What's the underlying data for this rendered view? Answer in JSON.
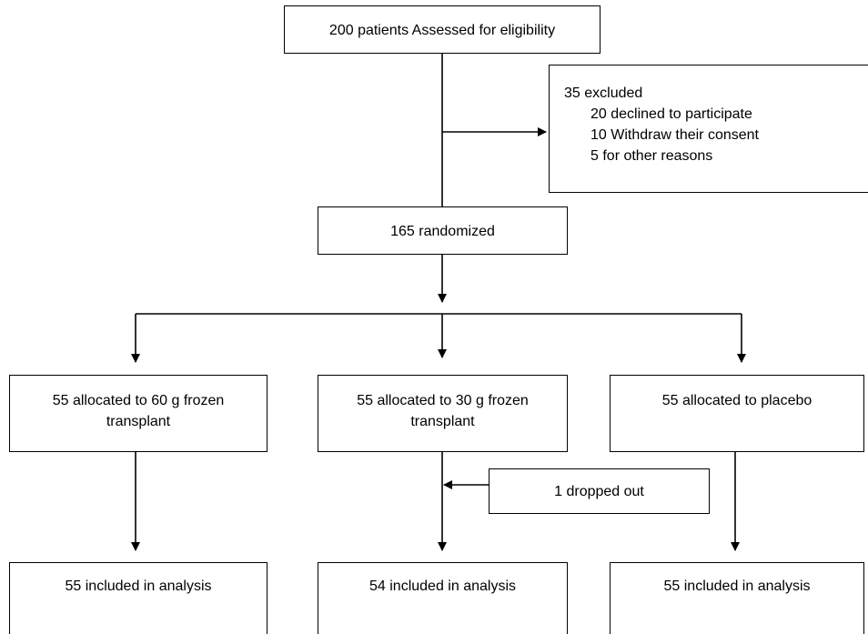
{
  "colors": {
    "line": "#000000",
    "box_border": "#000000",
    "background": "#ffffff"
  },
  "assessment": {
    "label": "200 patients Assessed for eligibility"
  },
  "exclusion": {
    "heading": "35 excluded",
    "reasons": [
      "20 declined to participate",
      "10 Withdraw their consent",
      "5 for other reasons"
    ]
  },
  "randomization": {
    "label": "165 randomized"
  },
  "arms": [
    {
      "allocation": "55 allocated to 60 g frozen transplant",
      "analysis": "55 included in analysis"
    },
    {
      "allocation": "55 allocated to 30 g frozen transplant",
      "dropout": "1 dropped out",
      "analysis": "54 included in analysis"
    },
    {
      "allocation": "55 allocated to placebo",
      "analysis": "55 included in analysis"
    }
  ]
}
